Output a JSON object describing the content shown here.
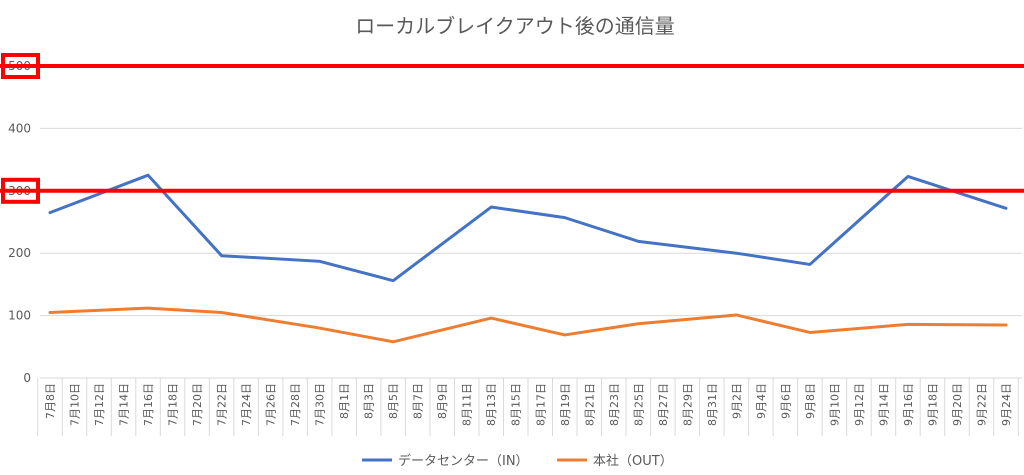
{
  "chart_data": {
    "type": "line",
    "title": "ローカルブレイクアウト後の通信量",
    "ylim": [
      0,
      500
    ],
    "yticks": [
      "0",
      "100",
      "200",
      "300",
      "400",
      "500"
    ],
    "grid": true,
    "legend": "bottom",
    "categories": [
      "7月8日",
      "7月10日",
      "7月12日",
      "7月14日",
      "7月16日",
      "7月18日",
      "7月20日",
      "7月22日",
      "7月24日",
      "7月26日",
      "7月28日",
      "7月30日",
      "8月1日",
      "8月3日",
      "8月5日",
      "8月7日",
      "8月9日",
      "8月11日",
      "8月13日",
      "8月15日",
      "8月17日",
      "8月19日",
      "8月21日",
      "8月23日",
      "8月25日",
      "8月27日",
      "8月29日",
      "8月31日",
      "9月2日",
      "9月4日",
      "9月6日",
      "9月8日",
      "9月10日",
      "9月12日",
      "9月14日",
      "9月16日",
      "9月18日",
      "9月20日",
      "9月22日",
      "9月24日"
    ],
    "series": [
      {
        "name": "データセンター（IN）",
        "color": "#4472c4",
        "points": [
          [
            0,
            265
          ],
          [
            4,
            325
          ],
          [
            7,
            196
          ],
          [
            11,
            187
          ],
          [
            14,
            156
          ],
          [
            18,
            274
          ],
          [
            21,
            257
          ],
          [
            24,
            219
          ],
          [
            28,
            200
          ],
          [
            31,
            182
          ],
          [
            35,
            323
          ],
          [
            39,
            272
          ]
        ]
      },
      {
        "name": "本社（OUT）",
        "color": "#ed7d31",
        "points": [
          [
            0,
            105
          ],
          [
            4,
            112
          ],
          [
            7,
            105
          ],
          [
            11,
            80
          ],
          [
            14,
            58
          ],
          [
            18,
            96
          ],
          [
            21,
            69
          ],
          [
            24,
            87
          ],
          [
            28,
            101
          ],
          [
            31,
            73
          ],
          [
            35,
            86
          ],
          [
            39,
            85
          ]
        ]
      }
    ],
    "highlight_lines": [
      {
        "value": 500,
        "color": "#ff0000"
      },
      {
        "value": 300,
        "color": "#ff0000"
      }
    ]
  }
}
